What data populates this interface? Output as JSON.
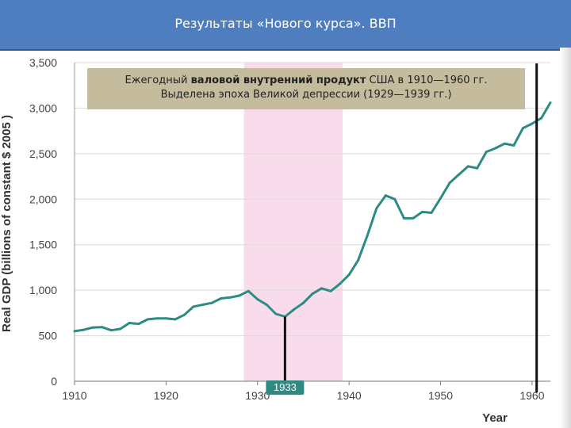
{
  "banner": {
    "title": "Результаты «Нового курса». ВВП"
  },
  "caption": {
    "line1_pre": "Ежегодный ",
    "line1_bold": "валовой внутренний продукт",
    "line1_post": " США в 1910—1960 гг.",
    "line2": "Выделена эпоха Великой депрессии (1929—1939 гг.)"
  },
  "colors": {
    "line": "#2e8b84",
    "band": "#f8dcec",
    "banner": "#4f7ec0"
  },
  "chart_data": {
    "type": "line",
    "title": "",
    "xlabel": "Year",
    "ylabel": "Real GDP (billions of constant $ 2005 )",
    "xlim": [
      1910,
      1962
    ],
    "ylim": [
      0,
      3500
    ],
    "x_ticks": [
      1910,
      1920,
      1930,
      1940,
      1950,
      1960
    ],
    "y_ticks": [
      0,
      500,
      1000,
      1500,
      2000,
      2500,
      3000,
      3500
    ],
    "y_tick_labels": [
      "0",
      "500",
      "1,000",
      "1,500",
      "2,000",
      "2,500",
      "3,000",
      "3,500"
    ],
    "highlight_range": [
      1928.5,
      1939.3
    ],
    "markers": [
      {
        "x": 1933.0,
        "label": "1933"
      },
      {
        "x": 1960.5,
        "label": ""
      }
    ],
    "series": [
      {
        "x": [
          1910,
          1911,
          1912,
          1913,
          1914,
          1915,
          1916,
          1917,
          1918,
          1919,
          1920,
          1921,
          1922,
          1923,
          1924,
          1925,
          1926,
          1927,
          1928,
          1929,
          1930,
          1931,
          1932,
          1933,
          1934,
          1935,
          1936,
          1937,
          1938,
          1939,
          1940,
          1941,
          1942,
          1943,
          1944,
          1945,
          1946,
          1947,
          1948,
          1949,
          1950,
          1951,
          1952,
          1953,
          1954,
          1955,
          1956,
          1957,
          1958,
          1959,
          1960,
          1961,
          1962
        ],
        "values": [
          550,
          565,
          590,
          595,
          560,
          575,
          640,
          630,
          680,
          690,
          690,
          680,
          730,
          820,
          840,
          860,
          910,
          920,
          940,
          990,
          900,
          840,
          740,
          710,
          790,
          860,
          960,
          1020,
          990,
          1070,
          1170,
          1330,
          1600,
          1900,
          2040,
          2000,
          1790,
          1790,
          1860,
          1850,
          2010,
          2180,
          2270,
          2360,
          2340,
          2520,
          2560,
          2610,
          2590,
          2780,
          2830,
          2890,
          3060
        ]
      }
    ]
  }
}
